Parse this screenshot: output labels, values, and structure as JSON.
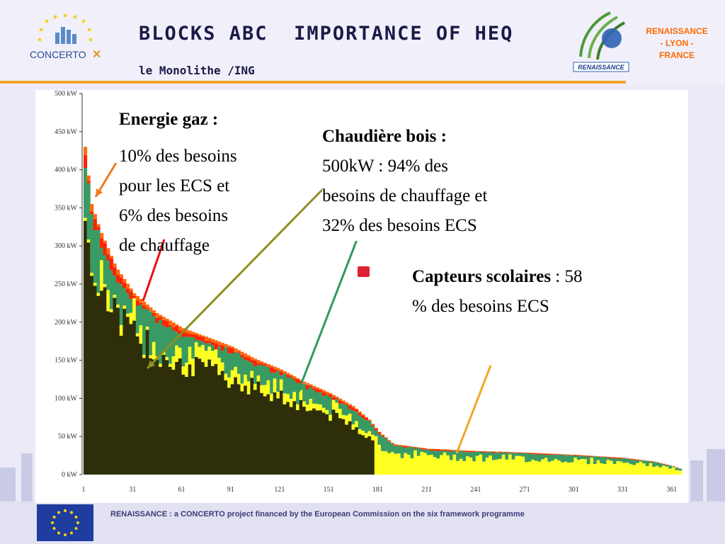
{
  "header": {
    "title": "BLOCKS ABC  IMPORTANCE OF HEQ",
    "subtitle": "le Monolithe /ING",
    "logo_left": "CONCERTO",
    "logo_right": "RENAISSANCE",
    "org_label_lines": [
      "RENAISSANCE",
      "- LYON -",
      "FRANCE"
    ]
  },
  "footer": {
    "text": "RENAISSANCE : a CONCERTO project financed by the European Commission on the six framework programme"
  },
  "annotations": {
    "gaz_title": "Energie gaz :",
    "gaz_text": [
      "10% des besoins",
      "pour les ECS et",
      "6% des besoins",
      "de chauffage"
    ],
    "bois_title": "Chaudière bois :",
    "bois_text": [
      "500kW : 94% des",
      "besoins de chauffage et",
      "32% des besoins ECS"
    ],
    "capteurs_title": "Capteurs scolaires",
    "capteurs_text_1": " : 58",
    "capteurs_text_2": "% des besoins ECS"
  },
  "colors": {
    "base": "#2e2f0a",
    "solar": "#ffff22",
    "wood": "#3a9a64",
    "gas": "#ff2200",
    "outer": "#ff6a10",
    "title": "#1a1a48",
    "accent_orange": "#f0a62a"
  },
  "chart_data": {
    "type": "area",
    "title": "",
    "xlabel": "",
    "ylabel": "",
    "xlim": [
      1,
      365
    ],
    "ylim": [
      0,
      500
    ],
    "x_ticks": [
      1,
      31,
      61,
      91,
      121,
      151,
      181,
      211,
      241,
      271,
      301,
      331,
      361
    ],
    "y_ticks": [
      "0 kW",
      "50 kW",
      "100 kW",
      "150 kW",
      "200 kW",
      "250 kW",
      "300 kW",
      "350 kW",
      "400 kW",
      "450 kW",
      "500 kW"
    ],
    "y_tick_values": [
      0,
      50,
      100,
      150,
      200,
      250,
      300,
      350,
      400,
      450,
      500
    ],
    "series": [
      {
        "name": "",
        "x": [
          1,
          5,
          10,
          20,
          31,
          45,
          61,
          75,
          91,
          105,
          121,
          135,
          151,
          165,
          175,
          181,
          190,
          211,
          241,
          271,
          301,
          331,
          350,
          361,
          365
        ],
        "values": [
          430,
          355,
          322,
          272,
          238,
          212,
          192,
          181,
          168,
          152,
          138,
          122,
          107,
          90,
          72,
          56,
          40,
          34,
          31,
          29,
          26,
          22,
          17,
          11,
          8
        ]
      }
    ]
  }
}
